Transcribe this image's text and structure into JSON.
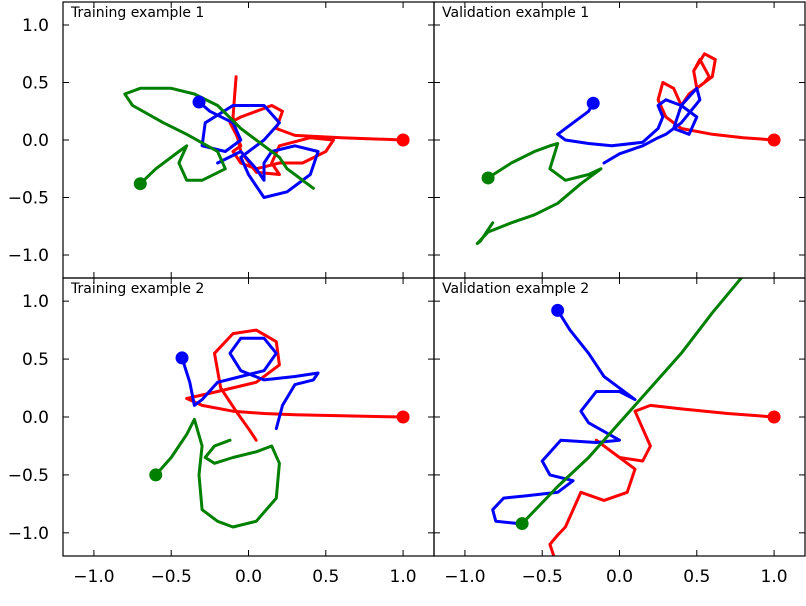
{
  "chart_data": [
    {
      "type": "line",
      "title": "Training example 1",
      "xlim": [
        -1.2,
        1.2
      ],
      "ylim": [
        -1.2,
        1.2
      ],
      "xticks": [
        "−1.0",
        "−0.5",
        "0.0",
        "0.5",
        "1.0"
      ],
      "yticks": [
        "1.0",
        "0.5",
        "0.0",
        "−0.5",
        "−1.0"
      ],
      "grid": false,
      "series": [
        {
          "color": "#ff0000",
          "start": [
            1.0,
            0.0
          ],
          "x": [
            1.0,
            0.6,
            0.3,
            0.18,
            0.22,
            0.15,
            -0.05,
            -0.12,
            -0.08,
            -0.05,
            -0.1,
            -0.05,
            0.05,
            0.2,
            0.35,
            0.5,
            0.55,
            0.4,
            0.2,
            0.15,
            0.2,
            0.05,
            -0.05,
            -0.1,
            -0.08
          ],
          "y": [
            0.0,
            0.02,
            0.04,
            0.1,
            0.25,
            0.3,
            0.2,
            0.15,
            0.05,
            -0.05,
            -0.1,
            -0.2,
            -0.25,
            -0.2,
            -0.2,
            -0.1,
            0.0,
            0.02,
            -0.05,
            -0.2,
            -0.3,
            -0.28,
            -0.1,
            0.2,
            0.55
          ]
        },
        {
          "color": "#0000ff",
          "start": [
            -0.32,
            0.33
          ],
          "x": [
            -0.32,
            -0.25,
            -0.1,
            -0.05,
            -0.15,
            -0.3,
            -0.28,
            -0.1,
            0.1,
            0.2,
            0.1,
            -0.05,
            0.0,
            0.1,
            0.25,
            0.4,
            0.45,
            0.3,
            0.15,
            0.1,
            0.1,
            0.05,
            -0.05,
            -0.2
          ],
          "y": [
            0.33,
            0.25,
            0.15,
            0.0,
            -0.1,
            -0.05,
            0.15,
            0.3,
            0.3,
            0.15,
            0.0,
            -0.15,
            -0.3,
            -0.5,
            -0.45,
            -0.3,
            -0.1,
            -0.05,
            -0.1,
            -0.2,
            -0.35,
            -0.25,
            -0.1,
            -0.2
          ]
        },
        {
          "color": "#008000",
          "start": [
            -0.7,
            -0.38
          ],
          "x": [
            -0.7,
            -0.6,
            -0.45,
            -0.4,
            -0.45,
            -0.4,
            -0.3,
            -0.15,
            -0.2,
            -0.4,
            -0.55,
            -0.75,
            -0.8,
            -0.7,
            -0.5,
            -0.35,
            -0.2,
            -0.05,
            0.1,
            0.2,
            0.25,
            0.3,
            0.35,
            0.42
          ],
          "y": [
            -0.38,
            -0.25,
            -0.1,
            -0.05,
            -0.2,
            -0.35,
            -0.35,
            -0.25,
            -0.1,
            0.05,
            0.15,
            0.3,
            0.4,
            0.45,
            0.45,
            0.4,
            0.3,
            0.1,
            -0.05,
            -0.15,
            -0.25,
            -0.3,
            -0.35,
            -0.42
          ]
        }
      ]
    },
    {
      "type": "line",
      "title": "Validation example 1",
      "xlim": [
        -1.2,
        1.2
      ],
      "ylim": [
        -1.2,
        1.2
      ],
      "xticks": [
        "−1.0",
        "−0.5",
        "0.0",
        "0.5",
        "1.0"
      ],
      "yticks": [
        "1.0",
        "0.5",
        "0.0",
        "−0.5",
        "−1.0"
      ],
      "grid": false,
      "series": [
        {
          "color": "#ff0000",
          "start": [
            1.0,
            0.0
          ],
          "x": [
            1.0,
            0.8,
            0.6,
            0.4,
            0.3,
            0.25,
            0.28,
            0.35,
            0.4,
            0.45,
            0.55,
            0.58,
            0.52,
            0.48,
            0.5,
            0.6,
            0.62,
            0.55,
            0.48
          ],
          "y": [
            0.0,
            0.02,
            0.05,
            0.1,
            0.2,
            0.35,
            0.5,
            0.45,
            0.3,
            0.4,
            0.5,
            0.55,
            0.7,
            0.6,
            0.45,
            0.55,
            0.7,
            0.75,
            0.6
          ]
        },
        {
          "color": "#0000ff",
          "start": [
            -0.17,
            0.32
          ],
          "x": [
            -0.17,
            -0.2,
            -0.3,
            -0.4,
            -0.35,
            -0.2,
            -0.05,
            0.15,
            0.25,
            0.28,
            0.25,
            0.3,
            0.4,
            0.5,
            0.45,
            0.35,
            0.4,
            0.5,
            0.52,
            0.4,
            0.3,
            0.25,
            0.15,
            0.0,
            -0.1
          ],
          "y": [
            0.32,
            0.25,
            0.15,
            0.05,
            0.0,
            -0.03,
            -0.05,
            -0.02,
            0.1,
            0.2,
            0.3,
            0.35,
            0.3,
            0.2,
            0.05,
            0.1,
            0.3,
            0.45,
            0.35,
            0.15,
            0.05,
            0.02,
            -0.05,
            -0.12,
            -0.2
          ]
        },
        {
          "color": "#008000",
          "start": [
            -0.85,
            -0.33
          ],
          "x": [
            -0.85,
            -0.7,
            -0.55,
            -0.45,
            -0.4,
            -0.45,
            -0.35,
            -0.2,
            -0.12,
            -0.25,
            -0.4,
            -0.55,
            -0.7,
            -0.85,
            -0.92,
            -0.9,
            -0.82
          ],
          "y": [
            -0.33,
            -0.2,
            -0.1,
            -0.05,
            -0.03,
            -0.25,
            -0.35,
            -0.3,
            -0.25,
            -0.38,
            -0.55,
            -0.65,
            -0.72,
            -0.8,
            -0.9,
            -0.88,
            -0.72
          ]
        }
      ]
    },
    {
      "type": "line",
      "title": "Training example 2",
      "xlim": [
        -1.2,
        1.2
      ],
      "ylim": [
        -1.2,
        1.2
      ],
      "xticks": [
        "−1.0",
        "−0.5",
        "0.0",
        "0.5",
        "1.0"
      ],
      "yticks": [
        "1.0",
        "0.5",
        "0.0",
        "−0.5",
        "−1.0"
      ],
      "grid": false,
      "series": [
        {
          "color": "#ff0000",
          "start": [
            1.0,
            0.0
          ],
          "x": [
            1.0,
            0.6,
            0.3,
            0.1,
            -0.1,
            -0.3,
            -0.4,
            -0.2,
            0.05,
            0.2,
            0.18,
            0.05,
            -0.1,
            -0.22,
            -0.18,
            -0.08,
            0.0,
            0.05
          ],
          "y": [
            0.0,
            0.01,
            0.02,
            0.03,
            0.05,
            0.1,
            0.16,
            0.22,
            0.3,
            0.45,
            0.65,
            0.75,
            0.72,
            0.55,
            0.25,
            0.05,
            -0.1,
            -0.2
          ]
        },
        {
          "color": "#0000ff",
          "start": [
            -0.43,
            0.51
          ],
          "x": [
            -0.43,
            -0.38,
            -0.35,
            -0.3,
            -0.2,
            -0.05,
            0.1,
            0.18,
            0.1,
            -0.05,
            -0.12,
            -0.05,
            0.1,
            0.3,
            0.45,
            0.42,
            0.3,
            0.22,
            0.18
          ],
          "y": [
            0.51,
            0.3,
            0.1,
            0.15,
            0.3,
            0.35,
            0.4,
            0.55,
            0.68,
            0.68,
            0.55,
            0.4,
            0.32,
            0.35,
            0.38,
            0.32,
            0.28,
            0.1,
            -0.1
          ]
        },
        {
          "color": "#008000",
          "start": [
            -0.6,
            -0.5
          ],
          "x": [
            -0.6,
            -0.5,
            -0.4,
            -0.35,
            -0.3,
            -0.32,
            -0.3,
            -0.2,
            -0.1,
            0.05,
            0.18,
            0.2,
            0.15,
            0.05,
            -0.1,
            -0.22,
            -0.28,
            -0.22,
            -0.12
          ],
          "y": [
            -0.5,
            -0.35,
            -0.15,
            -0.02,
            -0.25,
            -0.5,
            -0.8,
            -0.9,
            -0.95,
            -0.9,
            -0.7,
            -0.4,
            -0.25,
            -0.3,
            -0.35,
            -0.4,
            -0.35,
            -0.25,
            -0.2
          ]
        }
      ]
    },
    {
      "type": "line",
      "title": "Validation example 2",
      "xlim": [
        -1.2,
        1.2
      ],
      "ylim": [
        -1.2,
        1.2
      ],
      "xticks": [
        "−1.0",
        "−0.5",
        "0.0",
        "0.5",
        "1.0"
      ],
      "yticks": [
        "1.0",
        "0.5",
        "0.0",
        "−0.5",
        "−1.0"
      ],
      "grid": false,
      "series": [
        {
          "color": "#ff0000",
          "start": [
            1.0,
            0.0
          ],
          "x": [
            1.0,
            0.7,
            0.4,
            0.2,
            0.1,
            0.15,
            0.2,
            0.15,
            0.0,
            -0.15,
            -0.05,
            0.1,
            0.05,
            -0.1,
            -0.25,
            -0.3,
            -0.35,
            -0.4,
            -0.45,
            -0.42
          ],
          "y": [
            0.0,
            0.03,
            0.07,
            0.1,
            0.05,
            -0.1,
            -0.25,
            -0.38,
            -0.35,
            -0.2,
            -0.3,
            -0.45,
            -0.65,
            -0.72,
            -0.65,
            -0.8,
            -0.95,
            -1.02,
            -1.1,
            -1.22
          ]
        },
        {
          "color": "#0000ff",
          "start": [
            -0.4,
            0.92
          ],
          "x": [
            -0.4,
            -0.32,
            -0.2,
            -0.1,
            0.1,
            0.0,
            -0.15,
            -0.25,
            -0.2,
            0.0,
            -0.15,
            -0.38,
            -0.5,
            -0.45,
            -0.3,
            -0.4,
            -0.6,
            -0.75,
            -0.82,
            -0.8,
            -0.65
          ],
          "y": [
            0.92,
            0.75,
            0.55,
            0.35,
            0.15,
            0.22,
            0.22,
            0.05,
            -0.05,
            -0.2,
            -0.22,
            -0.2,
            -0.38,
            -0.5,
            -0.55,
            -0.65,
            -0.68,
            -0.7,
            -0.8,
            -0.9,
            -0.92
          ]
        },
        {
          "color": "#008000",
          "start": [
            -0.63,
            -0.92
          ],
          "x": [
            -0.63,
            -0.4,
            -0.2,
            0.0,
            0.2,
            0.4,
            0.6,
            0.8
          ],
          "y": [
            -0.92,
            -0.6,
            -0.35,
            -0.05,
            0.25,
            0.55,
            0.9,
            1.22
          ]
        }
      ]
    }
  ]
}
